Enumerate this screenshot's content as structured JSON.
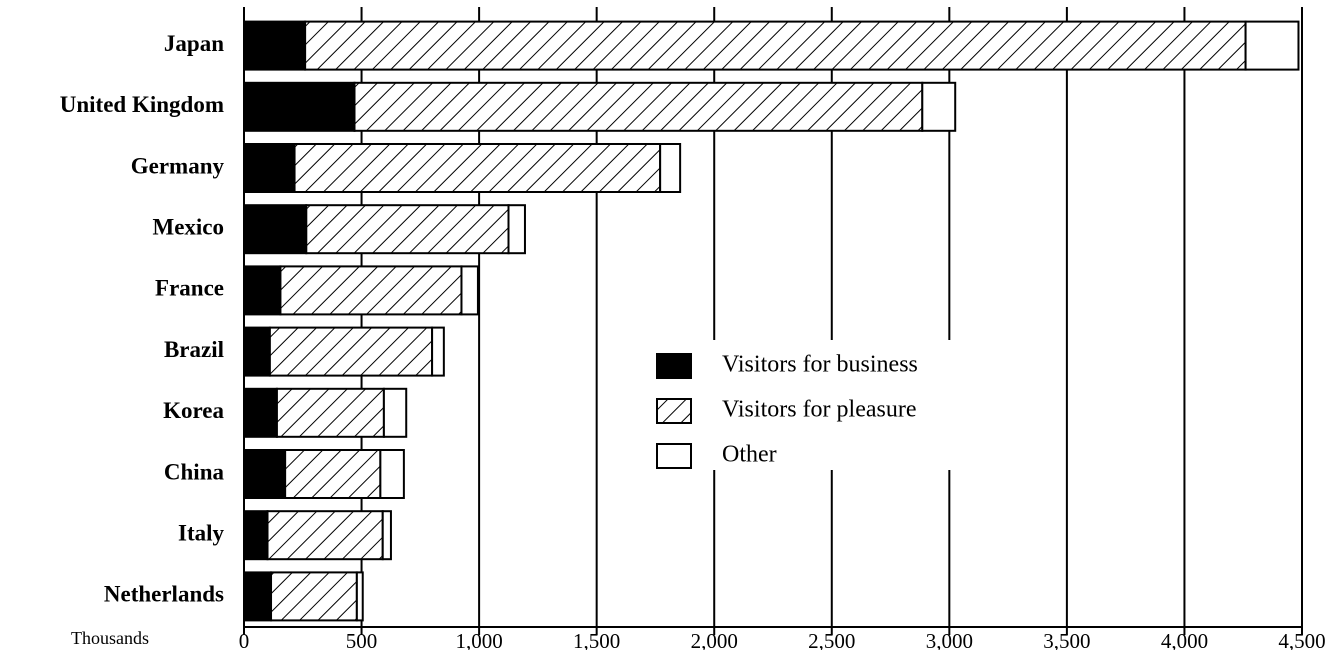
{
  "chart_data": {
    "type": "stacked-barh",
    "axis_label": "Thousands",
    "categories": [
      "Japan",
      "United Kingdom",
      "Germany",
      "Mexico",
      "France",
      "Brazil",
      "Korea",
      "China",
      "Italy",
      "Netherlands"
    ],
    "series": [
      {
        "name": "Visitors for business",
        "color": "#000000",
        "values": [
          260,
          470,
          215,
          265,
          155,
          110,
          140,
          175,
          100,
          115
        ]
      },
      {
        "name": "Visitors for pleasure",
        "color": "#000000",
        "hatch": true,
        "values": [
          4000,
          2415,
          1555,
          860,
          770,
          690,
          455,
          405,
          490,
          365
        ]
      },
      {
        "name": "Other",
        "color": "#ffffff",
        "values": [
          225,
          140,
          85,
          70,
          70,
          50,
          95,
          100,
          35,
          25
        ]
      }
    ],
    "xlim": [
      0,
      4500
    ],
    "xticks": [
      0,
      500,
      {
        "value": 1000,
        "label": "1,000"
      },
      {
        "value": 1500,
        "label": "1,500"
      },
      {
        "value": 2000,
        "label": "2,000"
      },
      {
        "value": 2500,
        "label": "2,500"
      },
      {
        "value": 3000,
        "label": "3,000"
      },
      {
        "value": 3500,
        "label": "3,500"
      },
      {
        "value": 4000,
        "label": "4,000"
      },
      {
        "value": 4500,
        "label": "4,500"
      }
    ],
    "grid": true
  }
}
